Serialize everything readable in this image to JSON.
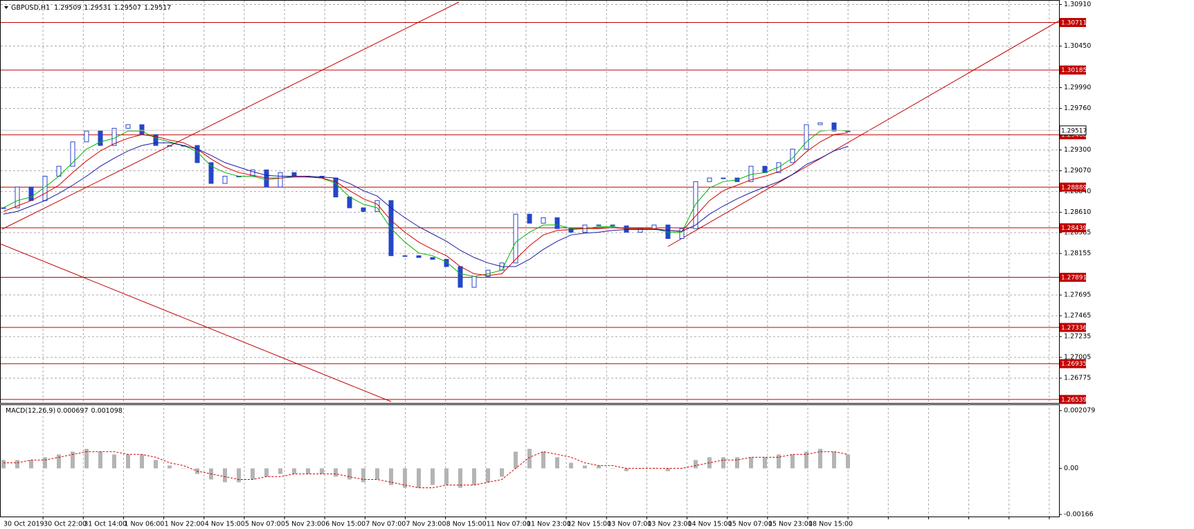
{
  "chart_data": [
    {
      "type": "candlestick",
      "title": "GBPUSD,H1",
      "header_values": [
        1.29509,
        1.29531,
        1.29507,
        1.29517
      ],
      "color": "#2446c8",
      "close": [
        1.2866,
        1.2889,
        1.2874,
        1.2901,
        1.2912,
        1.2939,
        1.2951,
        1.2935,
        1.2954,
        1.2958,
        1.2947,
        1.2935,
        1.2935,
        1.2935,
        1.2916,
        1.2893,
        1.2901,
        1.2901,
        1.2908,
        1.2889,
        1.2905,
        1.2901,
        1.2901,
        1.2899,
        1.2878,
        1.2866,
        1.2862,
        1.2874,
        1.2813,
        1.2813,
        1.2811,
        1.2809,
        1.2801,
        1.2778,
        1.279,
        1.2797,
        1.2805,
        1.2859,
        1.2849,
        1.2855,
        1.2843,
        1.2839,
        1.2847,
        1.2847,
        1.2846,
        1.2839,
        1.2843,
        1.2847,
        1.2832,
        1.2843,
        1.2895,
        1.2899,
        1.2899,
        1.2895,
        1.2912,
        1.2905,
        1.2916,
        1.2931,
        1.2958,
        1.296,
        1.2951,
        1.2951
      ],
      "lines": [
        {
          "color": "#00b400",
          "values": [
            1.2866,
            1.2874,
            1.2878,
            1.2889,
            1.2901,
            1.2916,
            1.2931,
            1.2939,
            1.2943,
            1.2951,
            1.2951,
            1.2943,
            1.2939,
            1.2935,
            1.2928,
            1.2912,
            1.2905,
            1.2901,
            1.2901,
            1.2897,
            1.2899,
            1.2901,
            1.2901,
            1.2899,
            1.2893,
            1.2878,
            1.287,
            1.2866,
            1.2843,
            1.2828,
            1.2816,
            1.2813,
            1.2806,
            1.2793,
            1.279,
            1.2793,
            1.2797,
            1.2828,
            1.2839,
            1.2847,
            1.2847,
            1.2843,
            1.2843,
            1.2845,
            1.2845,
            1.2843,
            1.2843,
            1.2843,
            1.2839,
            1.2839,
            1.287,
            1.2888,
            1.2895,
            1.2897,
            1.2903,
            1.2905,
            1.2911,
            1.2921,
            1.2939,
            1.2951,
            1.2952,
            1.2951
          ]
        },
        {
          "color": "#d00000",
          "values": [
            1.2862,
            1.2868,
            1.2874,
            1.2882,
            1.2891,
            1.2905,
            1.2918,
            1.2929,
            1.2937,
            1.2943,
            1.2947,
            1.2945,
            1.2941,
            1.2938,
            1.2931,
            1.292,
            1.2911,
            1.2905,
            1.2902,
            1.2899,
            1.2899,
            1.29,
            1.29,
            1.2899,
            1.2895,
            1.2885,
            1.2876,
            1.287,
            1.2852,
            1.2839,
            1.2828,
            1.282,
            1.2813,
            1.2801,
            1.2793,
            1.2791,
            1.2793,
            1.2809,
            1.2824,
            1.2836,
            1.2841,
            1.2842,
            1.2843,
            1.2843,
            1.2844,
            1.2843,
            1.2843,
            1.2843,
            1.2841,
            1.284,
            1.2857,
            1.2874,
            1.2885,
            1.2891,
            1.2897,
            1.2901,
            1.2906,
            1.2914,
            1.2928,
            1.2939,
            1.2947,
            1.2949
          ]
        },
        {
          "color": "#1a1aa0",
          "values": [
            1.2859,
            1.2862,
            1.2868,
            1.2874,
            1.2882,
            1.2891,
            1.2901,
            1.2912,
            1.2921,
            1.2929,
            1.2935,
            1.2938,
            1.2938,
            1.2935,
            1.2931,
            1.2924,
            1.2916,
            1.2911,
            1.2906,
            1.2902,
            1.2901,
            1.2901,
            1.2901,
            1.29,
            1.2899,
            1.2893,
            1.2885,
            1.2879,
            1.2866,
            1.2855,
            1.2845,
            1.2837,
            1.2829,
            1.2819,
            1.2811,
            1.2805,
            1.2801,
            1.2801,
            1.2809,
            1.282,
            1.2829,
            1.2836,
            1.2838,
            1.2839,
            1.2841,
            1.2842,
            1.2842,
            1.2842,
            1.2841,
            1.284,
            1.2847,
            1.2859,
            1.2868,
            1.2876,
            1.2883,
            1.2889,
            1.2895,
            1.2903,
            1.2914,
            1.2921,
            1.2929,
            1.2934
          ]
        }
      ],
      "ylim": [
        1.265,
        1.3096
      ],
      "yticks": [
        {
          "value": 1.3091,
          "label": "1.30910"
        },
        {
          "value": 1.3045,
          "label": "1.30450"
        },
        {
          "value": 1.2999,
          "label": "1.29990"
        },
        {
          "value": 1.2976,
          "label": "1.29760"
        },
        {
          "value": 1.293,
          "label": "1.29300"
        },
        {
          "value": 1.2907,
          "label": "1.29070"
        },
        {
          "value": 1.2884,
          "label": "1.28840"
        },
        {
          "value": 1.2861,
          "label": "1.28610"
        },
        {
          "value": 1.28385,
          "label": "1.28385"
        },
        {
          "value": 1.28155,
          "label": "1.28155"
        },
        {
          "value": 1.27695,
          "label": "1.27695"
        },
        {
          "value": 1.27465,
          "label": "1.27465"
        },
        {
          "value": 1.27235,
          "label": "1.27235"
        },
        {
          "value": 1.27005,
          "label": "1.27005"
        },
        {
          "value": 1.26775,
          "label": "1.26775"
        }
      ],
      "levels": [
        1.30711,
        1.30185,
        1.29468,
        1.28889,
        1.28439,
        1.27891,
        1.27336,
        1.26935,
        1.26539
      ],
      "level_color": "#c00000",
      "grid": true,
      "x_labels": [
        "30 Oct 2019",
        "30 Oct 22:00",
        "31 Oct 14:00",
        "1 Nov 06:00",
        "1 Nov 22:00",
        "4 Nov 15:00",
        "5 Nov 07:00",
        "5 Nov 23:00",
        "6 Nov 15:00",
        "7 Nov 07:00",
        "7 Nov 23:00",
        "8 Nov 15:00",
        "11 Nov 07:00",
        "11 Nov 23:00",
        "12 Nov 15:00",
        "13 Nov 07:00",
        "13 Nov 23:00",
        "14 Nov 15:00",
        "15 Nov 07:00",
        "15 Nov 23:00",
        "18 Nov 15:00",
        null,
        null,
        null,
        null,
        null,
        null
      ]
    },
    {
      "type": "macd",
      "title": "MACD(12,26,9)",
      "main": 0.000697,
      "signal": 0.001098,
      "color": "#b4b4b4",
      "signal_color": "#d00000",
      "values": [
        0.0003,
        0.0003,
        0.0003,
        0.0004,
        0.0005,
        0.0006,
        0.0007,
        0.0006,
        0.0005,
        0.0005,
        0.0005,
        0.0003,
        0.0001,
        0,
        -0.0002,
        -0.0004,
        -0.0005,
        -0.0005,
        -0.0004,
        -0.0003,
        -0.0002,
        -0.0002,
        -0.0002,
        -0.0002,
        -0.0003,
        -0.0004,
        -0.0005,
        -0.0004,
        -0.0006,
        -0.0007,
        -0.0007,
        -0.0006,
        -0.0006,
        -0.0007,
        -0.0006,
        -0.0005,
        -0.0003,
        0.0006,
        0.0007,
        0.0006,
        0.0004,
        0.0002,
        0.0001,
        0.0001,
        0,
        -0.0001,
        0,
        0,
        -0.0001,
        0,
        0.0003,
        0.0004,
        0.0004,
        0.0004,
        0.0004,
        0.0004,
        0.0005,
        0.0005,
        0.0006,
        0.0007,
        0.0006,
        0.0005
      ],
      "signal_values": [
        0.0002,
        0.0002,
        0.0003,
        0.0003,
        0.0004,
        0.0005,
        0.0006,
        0.0006,
        0.0006,
        0.0005,
        0.0005,
        0.0004,
        0.0002,
        0.0001,
        -0.0001,
        -0.0002,
        -0.0003,
        -0.0004,
        -0.0004,
        -0.0003,
        -0.0003,
        -0.0002,
        -0.0002,
        -0.0002,
        -0.0002,
        -0.0003,
        -0.0004,
        -0.0004,
        -0.0005,
        -0.0006,
        -0.0007,
        -0.0007,
        -0.0006,
        -0.0006,
        -0.0006,
        -0.0005,
        -0.0004,
        0,
        0.0004,
        0.0006,
        0.0005,
        0.0004,
        0.0002,
        0.0001,
        0.0001,
        0,
        0,
        0,
        0,
        0,
        0.0001,
        0.0002,
        0.0003,
        0.0003,
        0.0004,
        0.0004,
        0.0004,
        0.0005,
        0.0005,
        0.0006,
        0.0006,
        0.0005
      ],
      "ylim": [
        -0.00166,
        0.002079
      ],
      "yticks": [
        0.002079,
        {
          "value": 0,
          "label": "0.00"
        },
        -0.00166
      ]
    }
  ]
}
